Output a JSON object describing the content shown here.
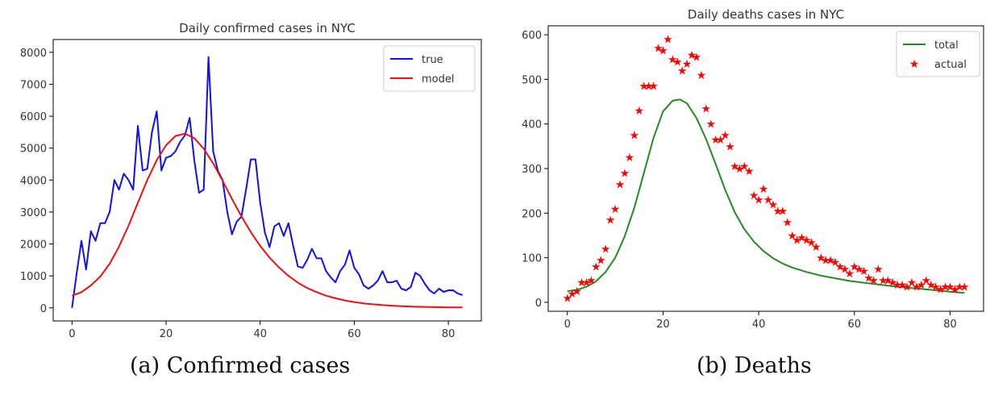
{
  "chart_data": [
    {
      "type": "line",
      "title": "Daily confirmed cases in NYC",
      "xlabel": "",
      "ylabel": "",
      "xlim": [
        -4,
        87
      ],
      "ylim": [
        -410,
        8400
      ],
      "xticks": [
        0,
        20,
        40,
        60,
        80
      ],
      "yticks": [
        0,
        1000,
        2000,
        3000,
        4000,
        5000,
        6000,
        7000,
        8000
      ],
      "grid": false,
      "legend": "top-right",
      "series": [
        {
          "name": "true",
          "kind": "line",
          "color": "#1010ee",
          "x": [
            0,
            1,
            2,
            3,
            4,
            5,
            6,
            7,
            8,
            9,
            10,
            11,
            12,
            13,
            14,
            15,
            16,
            17,
            18,
            19,
            20,
            21,
            22,
            23,
            24,
            25,
            26,
            27,
            28,
            29,
            30,
            31,
            32,
            33,
            34,
            35,
            36,
            37,
            38,
            39,
            40,
            41,
            42,
            43,
            44,
            45,
            46,
            47,
            48,
            49,
            50,
            51,
            52,
            53,
            54,
            55,
            56,
            57,
            58,
            59,
            60,
            61,
            62,
            63,
            64,
            65,
            66,
            67,
            68,
            69,
            70,
            71,
            72,
            73,
            74,
            75,
            76,
            77,
            78,
            79,
            80,
            81,
            82,
            83
          ],
          "values": [
            0,
            1100,
            2100,
            1200,
            2400,
            2100,
            2650,
            2650,
            3000,
            4000,
            3700,
            4200,
            4000,
            3700,
            5700,
            4300,
            4350,
            5500,
            6150,
            4300,
            4700,
            4750,
            4900,
            5200,
            5400,
            5950,
            4600,
            3600,
            3700,
            7850,
            4900,
            4300,
            4000,
            3000,
            2300,
            2700,
            2850,
            3700,
            4650,
            4650,
            3300,
            2350,
            1900,
            2550,
            2650,
            2250,
            2650,
            1950,
            1300,
            1250,
            1500,
            1850,
            1550,
            1550,
            1150,
            950,
            800,
            1150,
            1350,
            1800,
            1250,
            1050,
            700,
            600,
            700,
            850,
            1150,
            800,
            800,
            850,
            600,
            550,
            650,
            1100,
            1000,
            750,
            550,
            450,
            600,
            500,
            550,
            550,
            450,
            400
          ]
        },
        {
          "name": "model",
          "kind": "line",
          "color": "#ee1010",
          "peak_x": 24,
          "peak_value": 5450,
          "x": [
            0,
            2,
            4,
            6,
            8,
            10,
            12,
            14,
            16,
            18,
            20,
            22,
            24,
            26,
            28,
            30,
            32,
            34,
            36,
            38,
            40,
            42,
            44,
            46,
            48,
            50,
            52,
            54,
            56,
            58,
            60,
            62,
            64,
            66,
            68,
            70,
            72,
            74,
            76,
            78,
            80,
            83
          ],
          "values": [
            380,
            490,
            700,
            980,
            1380,
            1920,
            2570,
            3290,
            4000,
            4620,
            5090,
            5380,
            5450,
            5310,
            4980,
            4520,
            3980,
            3410,
            2870,
            2370,
            1940,
            1570,
            1260,
            1000,
            790,
            620,
            490,
            380,
            300,
            230,
            180,
            140,
            110,
            85,
            66,
            51,
            40,
            31,
            24,
            19,
            15,
            11
          ]
        }
      ]
    },
    {
      "type": "scatter",
      "title": "Daily deaths cases in NYC",
      "xlabel": "",
      "ylabel": "",
      "xlim": [
        -4,
        87
      ],
      "ylim": [
        -20,
        620
      ],
      "xticks": [
        0,
        20,
        40,
        60,
        80
      ],
      "yticks": [
        0,
        100,
        200,
        300,
        400,
        500,
        600
      ],
      "grid": false,
      "legend": "top-right",
      "series": [
        {
          "name": "total",
          "kind": "line",
          "color": "#228b22",
          "peak_x": 23.5,
          "peak_value": 455,
          "x": [
            0,
            2,
            4,
            6,
            8,
            10,
            12,
            14,
            16,
            18,
            20,
            22,
            23.5,
            25,
            27,
            29,
            31,
            33,
            35,
            37,
            39,
            41,
            43,
            45,
            47,
            50,
            53,
            56,
            59,
            62,
            65,
            68,
            71,
            74,
            77,
            80,
            83
          ],
          "values": [
            25,
            28,
            35,
            47,
            68,
            100,
            148,
            212,
            290,
            368,
            428,
            452,
            455,
            446,
            413,
            366,
            310,
            252,
            202,
            164,
            136,
            115,
            99,
            87,
            78,
            68,
            60,
            54,
            48,
            44,
            40,
            36,
            33,
            30,
            27,
            24,
            21
          ]
        },
        {
          "name": "actual",
          "kind": "scatter",
          "color": "#ff0000",
          "marker": "★",
          "x": [
            0,
            1,
            2,
            3,
            4,
            5,
            6,
            7,
            8,
            9,
            10,
            11,
            12,
            13,
            14,
            15,
            16,
            17,
            18,
            19,
            20,
            21,
            22,
            23,
            24,
            25,
            26,
            27,
            28,
            29,
            30,
            31,
            32,
            33,
            34,
            35,
            36,
            37,
            38,
            39,
            40,
            41,
            42,
            43,
            44,
            45,
            46,
            47,
            48,
            49,
            50,
            51,
            52,
            53,
            54,
            55,
            56,
            57,
            58,
            59,
            60,
            61,
            62,
            63,
            64,
            65,
            66,
            67,
            68,
            69,
            70,
            71,
            72,
            73,
            74,
            75,
            76,
            77,
            78,
            79,
            80,
            81,
            82,
            83
          ],
          "values": [
            10,
            20,
            25,
            45,
            45,
            50,
            80,
            95,
            120,
            185,
            210,
            265,
            290,
            325,
            375,
            430,
            485,
            485,
            485,
            570,
            565,
            590,
            545,
            540,
            520,
            535,
            555,
            550,
            510,
            435,
            400,
            365,
            365,
            375,
            350,
            305,
            300,
            305,
            295,
            240,
            230,
            255,
            230,
            220,
            205,
            205,
            180,
            150,
            140,
            145,
            140,
            135,
            125,
            100,
            95,
            95,
            90,
            80,
            75,
            65,
            80,
            75,
            70,
            55,
            50,
            75,
            50,
            50,
            45,
            40,
            40,
            35,
            45,
            35,
            40,
            50,
            40,
            35,
            30,
            35,
            35,
            30,
            35,
            35
          ]
        }
      ]
    }
  ],
  "captions": {
    "a": "(a) Confirmed cases",
    "b": "(b) Deaths"
  }
}
